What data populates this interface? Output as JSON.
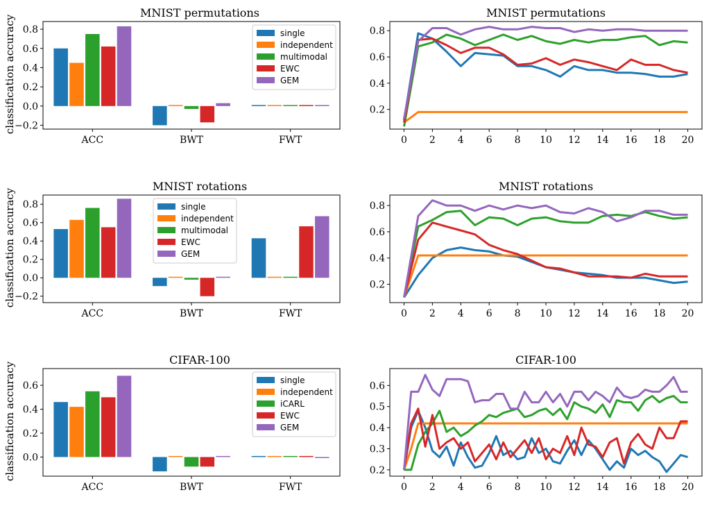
{
  "colors": {
    "single": "#1f77b4",
    "independent": "#ff7f0e",
    "multimodal": "#2ca02c",
    "iCARL": "#2ca02c",
    "EWC": "#d62728",
    "GEM": "#9467bd"
  },
  "ylabel": "classification accuracy",
  "chart_data": [
    {
      "type": "bar",
      "title": "MNIST permutations",
      "categories": [
        "ACC",
        "BWT",
        "FWT"
      ],
      "ylim": [
        -0.24,
        0.88
      ],
      "yticks": [
        -0.2,
        0.0,
        0.2,
        0.4,
        0.6,
        0.8
      ],
      "ytick_labels": [
        "−0.2",
        "0.0",
        "0.2",
        "0.4",
        "0.6",
        "0.8"
      ],
      "legend": "top-right",
      "series": [
        {
          "name": "single",
          "values": [
            0.6,
            -0.2,
            0.01
          ]
        },
        {
          "name": "independent",
          "values": [
            0.45,
            0.005,
            0.005
          ]
        },
        {
          "name": "multimodal",
          "values": [
            0.75,
            -0.03,
            0.005
          ]
        },
        {
          "name": "EWC",
          "values": [
            0.62,
            -0.17,
            0.005
          ]
        },
        {
          "name": "GEM",
          "values": [
            0.83,
            0.03,
            0.01
          ]
        }
      ]
    },
    {
      "type": "line",
      "title": "MNIST permutations",
      "x": [
        0,
        1,
        2,
        3,
        4,
        5,
        6,
        7,
        8,
        9,
        10,
        11,
        12,
        13,
        14,
        15,
        16,
        17,
        18,
        19,
        20
      ],
      "xticks": [
        0,
        2,
        4,
        6,
        8,
        10,
        12,
        14,
        16,
        18,
        20
      ],
      "xlim": [
        -1,
        21
      ],
      "ylim": [
        0.05,
        0.87
      ],
      "yticks": [
        0.2,
        0.4,
        0.6,
        0.8
      ],
      "ytick_labels": [
        "0.2",
        "0.4",
        "0.6",
        "0.8"
      ],
      "series": [
        {
          "name": "single",
          "values": [
            0.12,
            0.78,
            0.74,
            0.64,
            0.53,
            0.63,
            0.62,
            0.61,
            0.53,
            0.53,
            0.5,
            0.45,
            0.53,
            0.5,
            0.5,
            0.48,
            0.48,
            0.47,
            0.45,
            0.45,
            0.47
          ]
        },
        {
          "name": "independent",
          "values": [
            0.1,
            0.18,
            0.18,
            0.18,
            0.18,
            0.18,
            0.18,
            0.18,
            0.18,
            0.18,
            0.18,
            0.18,
            0.18,
            0.18,
            0.18,
            0.18,
            0.18,
            0.18,
            0.18,
            0.18,
            0.18
          ]
        },
        {
          "name": "multimodal",
          "values": [
            0.07,
            0.68,
            0.71,
            0.77,
            0.74,
            0.69,
            0.73,
            0.77,
            0.73,
            0.76,
            0.72,
            0.7,
            0.73,
            0.71,
            0.73,
            0.73,
            0.75,
            0.76,
            0.69,
            0.72,
            0.71
          ]
        },
        {
          "name": "EWC",
          "values": [
            0.1,
            0.73,
            0.74,
            0.69,
            0.63,
            0.67,
            0.67,
            0.62,
            0.54,
            0.55,
            0.59,
            0.54,
            0.58,
            0.56,
            0.53,
            0.5,
            0.58,
            0.54,
            0.54,
            0.5,
            0.48
          ]
        },
        {
          "name": "GEM",
          "values": [
            0.13,
            0.72,
            0.82,
            0.82,
            0.77,
            0.81,
            0.83,
            0.81,
            0.81,
            0.83,
            0.82,
            0.82,
            0.79,
            0.81,
            0.8,
            0.81,
            0.81,
            0.8,
            0.8,
            0.8,
            0.8
          ]
        }
      ]
    },
    {
      "type": "bar",
      "title": "MNIST rotations",
      "categories": [
        "ACC",
        "BWT",
        "FWT"
      ],
      "ylim": [
        -0.27,
        0.9
      ],
      "yticks": [
        -0.2,
        0.0,
        0.2,
        0.4,
        0.6,
        0.8
      ],
      "ytick_labels": [
        "−0.2",
        "0.0",
        "0.2",
        "0.4",
        "0.6",
        "0.8"
      ],
      "legend": "upper-center",
      "series": [
        {
          "name": "single",
          "values": [
            0.53,
            -0.09,
            0.43
          ]
        },
        {
          "name": "independent",
          "values": [
            0.63,
            0.005,
            0.005
          ]
        },
        {
          "name": "multimodal",
          "values": [
            0.76,
            -0.02,
            0.01
          ]
        },
        {
          "name": "EWC",
          "values": [
            0.55,
            -0.2,
            0.56
          ]
        },
        {
          "name": "GEM",
          "values": [
            0.86,
            0.005,
            0.67
          ]
        }
      ]
    },
    {
      "type": "line",
      "title": "MNIST rotations",
      "x": [
        0,
        1,
        2,
        3,
        4,
        5,
        6,
        7,
        8,
        9,
        10,
        11,
        12,
        13,
        14,
        15,
        16,
        17,
        18,
        19,
        20
      ],
      "xticks": [
        0,
        2,
        4,
        6,
        8,
        10,
        12,
        14,
        16,
        18,
        20
      ],
      "xlim": [
        -1,
        21
      ],
      "ylim": [
        0.06,
        0.88
      ],
      "yticks": [
        0.2,
        0.4,
        0.6,
        0.8
      ],
      "ytick_labels": [
        "0.2",
        "0.4",
        "0.6",
        "0.8"
      ],
      "series": [
        {
          "name": "single",
          "values": [
            0.1,
            0.27,
            0.4,
            0.46,
            0.48,
            0.46,
            0.45,
            0.42,
            0.41,
            0.37,
            0.33,
            0.31,
            0.29,
            0.28,
            0.27,
            0.25,
            0.25,
            0.25,
            0.23,
            0.21,
            0.22
          ]
        },
        {
          "name": "independent",
          "values": [
            0.1,
            0.42,
            0.42,
            0.42,
            0.42,
            0.42,
            0.42,
            0.42,
            0.42,
            0.42,
            0.42,
            0.42,
            0.42,
            0.42,
            0.42,
            0.42,
            0.42,
            0.42,
            0.42,
            0.42,
            0.42
          ]
        },
        {
          "name": "multimodal",
          "values": [
            0.1,
            0.64,
            0.69,
            0.75,
            0.76,
            0.65,
            0.71,
            0.7,
            0.65,
            0.7,
            0.71,
            0.68,
            0.67,
            0.67,
            0.72,
            0.73,
            0.72,
            0.75,
            0.72,
            0.7,
            0.71
          ]
        },
        {
          "name": "EWC",
          "values": [
            0.1,
            0.54,
            0.67,
            0.64,
            0.61,
            0.58,
            0.5,
            0.46,
            0.43,
            0.38,
            0.33,
            0.32,
            0.29,
            0.26,
            0.26,
            0.26,
            0.25,
            0.28,
            0.26,
            0.26,
            0.26
          ]
        },
        {
          "name": "GEM",
          "values": [
            0.1,
            0.72,
            0.84,
            0.8,
            0.8,
            0.76,
            0.8,
            0.77,
            0.8,
            0.78,
            0.8,
            0.75,
            0.74,
            0.78,
            0.75,
            0.68,
            0.71,
            0.76,
            0.76,
            0.73,
            0.73
          ]
        }
      ]
    },
    {
      "type": "bar",
      "title": "CIFAR-100",
      "categories": [
        "ACC",
        "BWT",
        "FWT"
      ],
      "ylim": [
        -0.16,
        0.74
      ],
      "yticks": [
        0.0,
        0.2,
        0.4,
        0.6
      ],
      "ytick_labels": [
        "0.0",
        "0.2",
        "0.4",
        "0.6"
      ],
      "legend": "top-right",
      "series": [
        {
          "name": "single",
          "values": [
            0.46,
            -0.12,
            0.005
          ]
        },
        {
          "name": "independent",
          "values": [
            0.42,
            0.005,
            0.005
          ]
        },
        {
          "name": "iCARL",
          "values": [
            0.55,
            -0.08,
            0.005
          ]
        },
        {
          "name": "EWC",
          "values": [
            0.5,
            -0.08,
            0.005
          ]
        },
        {
          "name": "GEM",
          "values": [
            0.68,
            0.005,
            -0.005
          ]
        }
      ]
    },
    {
      "type": "line",
      "title": "CIFAR-100",
      "xticks": [
        0,
        2,
        4,
        6,
        8,
        10,
        12,
        14,
        16,
        18,
        20
      ],
      "xlim": [
        -1,
        21
      ],
      "ylim": [
        0.17,
        0.68
      ],
      "yticks": [
        0.2,
        0.3,
        0.4,
        0.5,
        0.6
      ],
      "ytick_labels": [
        "0.2",
        "0.3",
        "0.4",
        "0.5",
        "0.6"
      ],
      "x": [
        0,
        0.5,
        1,
        1.5,
        2,
        2.5,
        3,
        3.5,
        4,
        4.5,
        5,
        5.5,
        6,
        6.5,
        7,
        7.5,
        8,
        8.5,
        9,
        9.5,
        10,
        10.5,
        11,
        11.5,
        12,
        12.5,
        13,
        13.5,
        14,
        14.5,
        15,
        15.5,
        16,
        16.5,
        17,
        17.5,
        18,
        18.5,
        19,
        19.5,
        20
      ],
      "series": [
        {
          "name": "single",
          "values": [
            0.2,
            0.4,
            0.48,
            0.4,
            0.29,
            0.26,
            0.31,
            0.22,
            0.33,
            0.26,
            0.21,
            0.22,
            0.28,
            0.36,
            0.27,
            0.29,
            0.25,
            0.26,
            0.35,
            0.28,
            0.3,
            0.24,
            0.23,
            0.29,
            0.34,
            0.27,
            0.34,
            0.3,
            0.25,
            0.2,
            0.24,
            0.21,
            0.3,
            0.27,
            0.29,
            0.26,
            0.24,
            0.19,
            0.23,
            0.27,
            0.26
          ]
        },
        {
          "name": "independent",
          "values": [
            0.2,
            0.3,
            0.42,
            0.42,
            0.42,
            0.42,
            0.42,
            0.42,
            0.42,
            0.42,
            0.42,
            0.42,
            0.42,
            0.42,
            0.42,
            0.42,
            0.42,
            0.42,
            0.42,
            0.42,
            0.42,
            0.42,
            0.42,
            0.42,
            0.42,
            0.42,
            0.42,
            0.42,
            0.42,
            0.42,
            0.42,
            0.42,
            0.42,
            0.42,
            0.42,
            0.42,
            0.42,
            0.42,
            0.42,
            0.42,
            0.42
          ]
        },
        {
          "name": "iCARL",
          "values": [
            0.2,
            0.2,
            0.32,
            0.38,
            0.42,
            0.48,
            0.38,
            0.4,
            0.36,
            0.38,
            0.41,
            0.43,
            0.46,
            0.45,
            0.47,
            0.48,
            0.49,
            0.45,
            0.46,
            0.48,
            0.49,
            0.46,
            0.49,
            0.44,
            0.52,
            0.5,
            0.49,
            0.47,
            0.51,
            0.45,
            0.53,
            0.52,
            0.52,
            0.48,
            0.53,
            0.55,
            0.52,
            0.54,
            0.55,
            0.52,
            0.52
          ]
        },
        {
          "name": "EWC",
          "values": [
            0.2,
            0.42,
            0.49,
            0.31,
            0.46,
            0.3,
            0.33,
            0.35,
            0.3,
            0.33,
            0.24,
            0.28,
            0.32,
            0.25,
            0.33,
            0.26,
            0.3,
            0.34,
            0.28,
            0.35,
            0.25,
            0.3,
            0.28,
            0.36,
            0.27,
            0.4,
            0.32,
            0.31,
            0.26,
            0.33,
            0.35,
            0.23,
            0.33,
            0.37,
            0.32,
            0.3,
            0.4,
            0.35,
            0.35,
            0.43,
            0.43
          ]
        },
        {
          "name": "GEM",
          "values": [
            0.2,
            0.57,
            0.57,
            0.65,
            0.58,
            0.55,
            0.63,
            0.63,
            0.63,
            0.62,
            0.52,
            0.53,
            0.53,
            0.56,
            0.56,
            0.49,
            0.49,
            0.57,
            0.52,
            0.52,
            0.57,
            0.52,
            0.56,
            0.5,
            0.57,
            0.57,
            0.53,
            0.57,
            0.55,
            0.52,
            0.59,
            0.55,
            0.54,
            0.55,
            0.58,
            0.57,
            0.57,
            0.6,
            0.64,
            0.57,
            0.57
          ]
        }
      ]
    }
  ]
}
